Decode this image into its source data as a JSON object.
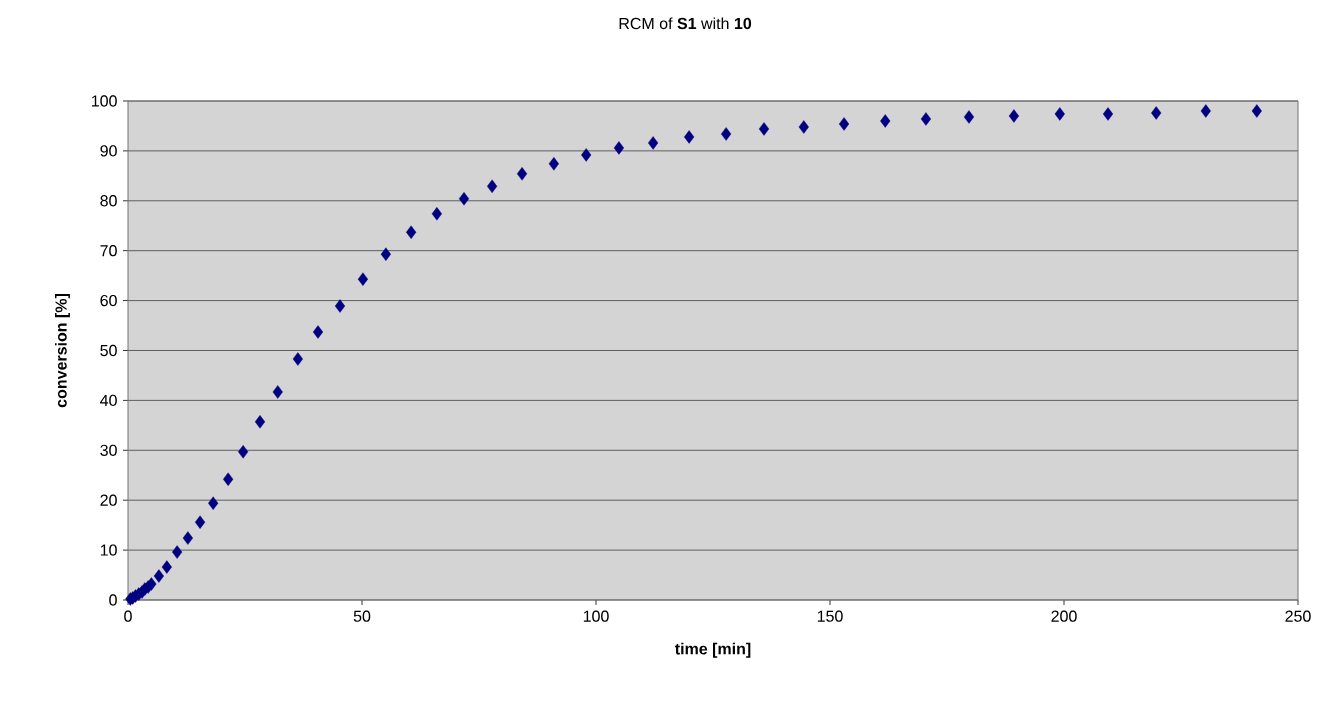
{
  "chart_data": {
    "type": "scatter",
    "title": "RCM of **S1** with **10**",
    "xlabel": "time [min]",
    "ylabel": "conversion [%]",
    "x": [
      0.5,
      1,
      1.6,
      2.3,
      3,
      3.6,
      4.3,
      5,
      6.6,
      8.3,
      10.5,
      12.8,
      15.4,
      18.2,
      21.4,
      24.6,
      28.2,
      32,
      36.3,
      40.6,
      45.3,
      50.2,
      55.1,
      60.5,
      66,
      71.8,
      77.8,
      84.2,
      91,
      97.9,
      104.9,
      112.2,
      119.9,
      127.8,
      135.9,
      144.4,
      153,
      161.8,
      170.5,
      179.7,
      189.3,
      199.1,
      209.4,
      219.7,
      230.3,
      241.2
    ],
    "series": [
      {
        "color": "#000080",
        "values": [
          0.2,
          0.4,
          0.8,
          1.2,
          1.6,
          2.2,
          2.6,
          3.2,
          4.8,
          6.6,
          9.6,
          12.4,
          15.6,
          19.4,
          24.2,
          29.7,
          35.7,
          41.7,
          48.3,
          53.7,
          58.9,
          64.3,
          69.3,
          73.7,
          77.4,
          80.4,
          82.9,
          85.4,
          87.4,
          89.2,
          90.6,
          91.6,
          92.8,
          93.4,
          94.4,
          94.8,
          95.4,
          96,
          96.4,
          96.8,
          97,
          97.4,
          97.4,
          97.6,
          98,
          98
        ]
      }
    ],
    "xlim": [
      0,
      250
    ],
    "ylim": [
      0,
      100
    ],
    "xticks": [
      0,
      50,
      100,
      150,
      200,
      250
    ],
    "yticks": [
      0,
      10,
      20,
      30,
      40,
      50,
      60,
      70,
      80,
      90,
      100
    ],
    "grid": "y",
    "marker": "diamond"
  }
}
